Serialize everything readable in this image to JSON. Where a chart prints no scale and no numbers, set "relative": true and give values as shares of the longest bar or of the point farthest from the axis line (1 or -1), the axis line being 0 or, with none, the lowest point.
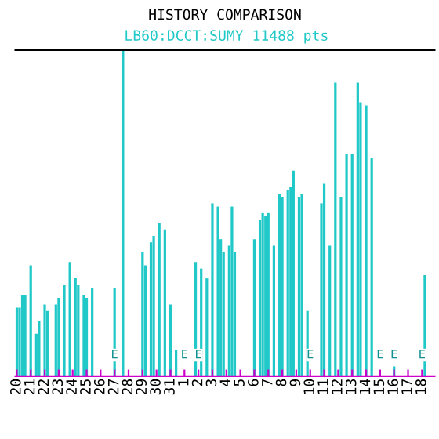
{
  "chart_data": {
    "type": "bar",
    "title": "HISTORY COMPARISON",
    "relative": true,
    "color": "#20c8c8",
    "categories": [
      "20",
      null,
      null,
      null,
      null,
      "21",
      null,
      null,
      null,
      null,
      "22",
      null,
      null,
      null,
      null,
      "23",
      null,
      null,
      null,
      null,
      "24",
      null,
      null,
      null,
      null,
      "25",
      null,
      null,
      null,
      null,
      "26",
      null,
      null,
      null,
      null,
      "27",
      null,
      null,
      null,
      null,
      "28",
      null,
      null,
      null,
      null,
      "29",
      null,
      null,
      null,
      null,
      "30",
      null,
      null,
      null,
      null,
      "31",
      null,
      null,
      null,
      null,
      "1",
      null,
      null,
      null,
      null,
      "2",
      null,
      null,
      null,
      null,
      "3",
      null,
      null,
      null,
      null,
      "4",
      null,
      null,
      null,
      null,
      "5",
      null,
      null,
      null,
      null,
      "6",
      null,
      null,
      null,
      null,
      "7",
      null,
      null,
      null,
      null,
      "8",
      null,
      null,
      null,
      null,
      "9",
      null,
      null,
      null,
      null,
      "10",
      null,
      null,
      null,
      null,
      "11",
      null,
      null,
      null,
      null,
      "12",
      null,
      null,
      null,
      null,
      "13",
      null,
      null,
      null,
      null,
      "14",
      null,
      null,
      null,
      null,
      "15",
      null,
      null,
      null,
      null,
      "16",
      null,
      null,
      null,
      null,
      "17",
      null,
      null,
      null,
      null,
      "18",
      null,
      null,
      null,
      null
    ],
    "values": [
      0.21,
      0.21,
      0.25,
      0.25,
      null,
      0.34,
      null,
      0.13,
      0.17,
      null,
      0.22,
      0.2,
      null,
      null,
      0.22,
      0.24,
      null,
      0.28,
      null,
      0.35,
      null,
      0.3,
      0.28,
      null,
      0.25,
      0.24,
      null,
      0.27,
      null,
      null,
      null,
      null,
      null,
      null,
      null,
      0.27,
      null,
      null,
      1,
      null,
      null,
      null,
      null,
      null,
      null,
      0.38,
      0.34,
      null,
      0.41,
      0.43,
      null,
      0.47,
      null,
      0.45,
      null,
      0.22,
      null,
      0.08,
      null,
      null,
      null,
      null,
      null,
      null,
      0.35,
      null,
      0.33,
      null,
      0.3,
      null,
      0.53,
      null,
      0.52,
      0.42,
      0.38,
      null,
      0.4,
      0.52,
      0.38,
      null,
      null,
      null,
      null,
      null,
      null,
      0.42,
      null,
      0.48,
      0.5,
      0.49,
      0.5,
      null,
      0.4,
      null,
      0.56,
      0.55,
      null,
      0.57,
      0.58,
      0.63,
      null,
      0.55,
      0.56,
      null,
      0.2,
      null,
      null,
      null,
      null,
      0.53,
      0.59,
      null,
      0.4,
      null,
      0.9,
      null,
      0.55,
      null,
      0.68,
      null,
      0.68,
      null,
      0.9,
      0.84,
      null,
      0.83,
      null,
      0.67,
      null,
      null,
      null,
      null,
      null,
      null,
      null,
      0.03,
      null,
      null,
      null,
      null,
      null,
      null,
      null,
      null,
      null,
      null,
      0.31,
      null,
      null,
      null
    ],
    "grid": false,
    "annotations": [
      {
        "text": "LB60:DCCT:SUMY 11488 pts",
        "x": "28",
        "y": 1
      },
      {
        "text": "E",
        "x": "27",
        "y": 0
      },
      {
        "text": "E",
        "x": "1",
        "y": 0
      },
      {
        "text": "E",
        "x": "2",
        "y": 0
      },
      {
        "text": "E",
        "x": "10",
        "y": 0
      },
      {
        "text": "E",
        "x": "15",
        "y": 0
      },
      {
        "text": "E",
        "x": "16",
        "y": 0
      },
      {
        "text": "E",
        "x": "18",
        "y": 0
      }
    ]
  }
}
